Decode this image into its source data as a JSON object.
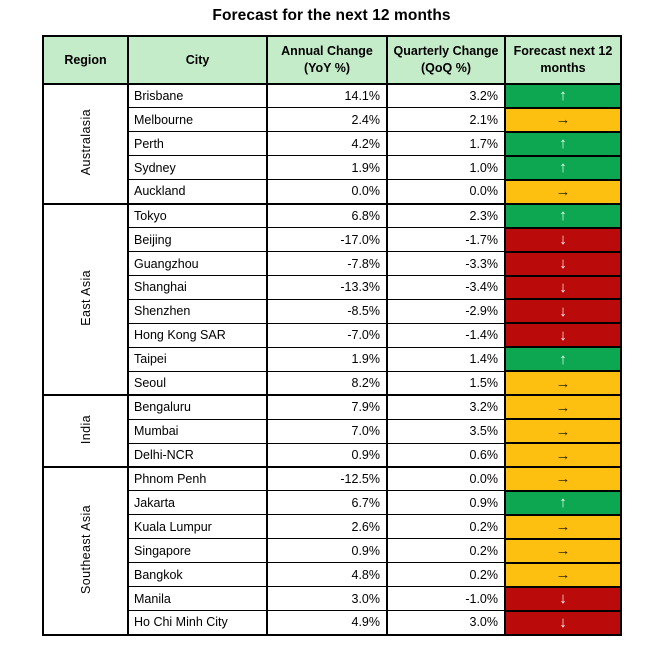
{
  "chart_data": {
    "type": "table",
    "title": "Forecast for the next 12 months",
    "headers": [
      {
        "l1": "Region",
        "l2": ""
      },
      {
        "l1": "City",
        "l2": ""
      },
      {
        "l1": "Annual Change",
        "l2": "(YoY %)"
      },
      {
        "l1": "Quarterly Change",
        "l2": "(QoQ %)"
      },
      {
        "l1": "Forecast next 12",
        "l2": "months"
      }
    ],
    "value_format": "percent_one_decimal",
    "regions": [
      {
        "region": "Australasia",
        "rows": [
          {
            "city": "Brisbane",
            "yoy_pct": 14.1,
            "qoq_pct": 3.2,
            "forecast": "up"
          },
          {
            "city": "Melbourne",
            "yoy_pct": 2.4,
            "qoq_pct": 2.1,
            "forecast": "steady"
          },
          {
            "city": "Perth",
            "yoy_pct": 4.2,
            "qoq_pct": 1.7,
            "forecast": "up"
          },
          {
            "city": "Sydney",
            "yoy_pct": 1.9,
            "qoq_pct": 1.0,
            "forecast": "up"
          },
          {
            "city": "Auckland",
            "yoy_pct": 0.0,
            "qoq_pct": 0.0,
            "forecast": "steady"
          }
        ]
      },
      {
        "region": "East Asia",
        "rows": [
          {
            "city": "Tokyo",
            "yoy_pct": 6.8,
            "qoq_pct": 2.3,
            "forecast": "up"
          },
          {
            "city": "Beijing",
            "yoy_pct": -17.0,
            "qoq_pct": -1.7,
            "forecast": "down"
          },
          {
            "city": "Guangzhou",
            "yoy_pct": -7.8,
            "qoq_pct": -3.3,
            "forecast": "down"
          },
          {
            "city": "Shanghai",
            "yoy_pct": -13.3,
            "qoq_pct": -3.4,
            "forecast": "down"
          },
          {
            "city": "Shenzhen",
            "yoy_pct": -8.5,
            "qoq_pct": -2.9,
            "forecast": "down"
          },
          {
            "city": "Hong Kong SAR",
            "yoy_pct": -7.0,
            "qoq_pct": -1.4,
            "forecast": "down"
          },
          {
            "city": "Taipei",
            "yoy_pct": 1.9,
            "qoq_pct": 1.4,
            "forecast": "up"
          },
          {
            "city": "Seoul",
            "yoy_pct": 8.2,
            "qoq_pct": 1.5,
            "forecast": "steady"
          }
        ]
      },
      {
        "region": "India",
        "rows": [
          {
            "city": "Bengaluru",
            "yoy_pct": 7.9,
            "qoq_pct": 3.2,
            "forecast": "steady"
          },
          {
            "city": "Mumbai",
            "yoy_pct": 7.0,
            "qoq_pct": 3.5,
            "forecast": "steady"
          },
          {
            "city": "Delhi-NCR",
            "yoy_pct": 0.9,
            "qoq_pct": 0.6,
            "forecast": "steady"
          }
        ]
      },
      {
        "region": "Southeast Asia",
        "rows": [
          {
            "city": "Phnom Penh",
            "yoy_pct": -12.5,
            "qoq_pct": 0.0,
            "forecast": "steady"
          },
          {
            "city": "Jakarta",
            "yoy_pct": 6.7,
            "qoq_pct": 0.9,
            "forecast": "up"
          },
          {
            "city": "Kuala Lumpur",
            "yoy_pct": 2.6,
            "qoq_pct": 0.2,
            "forecast": "steady"
          },
          {
            "city": "Singapore",
            "yoy_pct": 0.9,
            "qoq_pct": 0.2,
            "forecast": "steady"
          },
          {
            "city": "Bangkok",
            "yoy_pct": 4.8,
            "qoq_pct": 0.2,
            "forecast": "steady"
          },
          {
            "city": "Manila",
            "yoy_pct": 3.0,
            "qoq_pct": -1.0,
            "forecast": "down"
          },
          {
            "city": "Ho Chi Minh City",
            "yoy_pct": 4.9,
            "qoq_pct": 3.0,
            "forecast": "down"
          }
        ]
      }
    ],
    "forecast_arrows": {
      "up": "↑",
      "steady": "→",
      "down": "↓"
    },
    "forecast_colors": {
      "up": "#0ca750",
      "steady": "#fdc011",
      "down": "#bb0a0a"
    },
    "header_bg": "#c5ecc8"
  }
}
